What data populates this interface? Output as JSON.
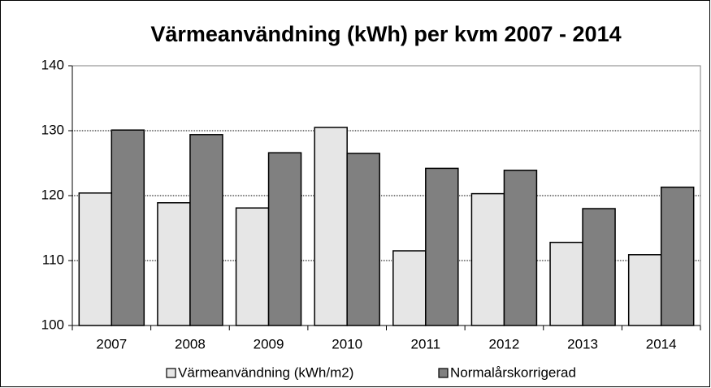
{
  "chart_data": {
    "type": "bar",
    "title": "Värmeanvändning (kWh) per kvm 2007 - 2014",
    "categories": [
      "2007",
      "2008",
      "2009",
      "2010",
      "2011",
      "2012",
      "2013",
      "2014"
    ],
    "series": [
      {
        "name": "Värmeanvändning (kWh/m2)",
        "color": "#e6e6e6",
        "values": [
          120.4,
          118.9,
          118.1,
          130.5,
          111.5,
          120.3,
          112.8,
          110.9
        ]
      },
      {
        "name": "Normalårskorrigerad",
        "color": "#808080",
        "values": [
          130.1,
          129.4,
          126.6,
          126.5,
          124.2,
          123.9,
          118.0,
          121.3
        ]
      }
    ],
    "ylim": [
      100,
      140
    ],
    "yticks": [
      100,
      110,
      120,
      130,
      140
    ],
    "grid": true
  }
}
